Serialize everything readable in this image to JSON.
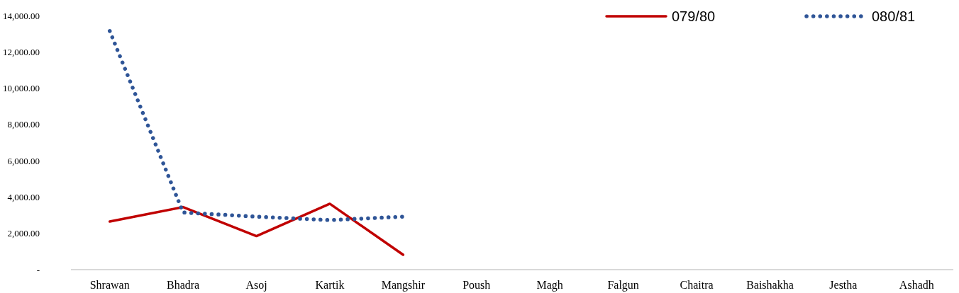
{
  "chart_data": {
    "type": "line",
    "categories": [
      "Shrawan",
      "Bhadra",
      "Asoj",
      "Kartik",
      "Mangshir",
      "Poush",
      "Magh",
      "Falgun",
      "Chaitra",
      "Baishakha",
      "Jestha",
      "Ashadh"
    ],
    "series": [
      {
        "name": "079/80",
        "color": "#c00000",
        "values": [
          2650,
          3450,
          1850,
          3630,
          820,
          null,
          null,
          null,
          null,
          null,
          null,
          null
        ],
        "line_style": "solid"
      },
      {
        "name": "080/81",
        "color": "#2f5597",
        "values": [
          13150,
          3150,
          2920,
          2730,
          2920,
          null,
          null,
          null,
          null,
          null,
          null,
          null
        ],
        "line_style": "dotted"
      }
    ],
    "ylim": [
      0,
      14000
    ],
    "yticks": [
      {
        "value": 0,
        "label": "-"
      },
      {
        "value": 2000,
        "label": "2,000.00"
      },
      {
        "value": 4000,
        "label": "4,000.00"
      },
      {
        "value": 6000,
        "label": "6,000.00"
      },
      {
        "value": 8000,
        "label": "8,000.00"
      },
      {
        "value": 10000,
        "label": "10,000.00"
      },
      {
        "value": 12000,
        "label": "12,000.00"
      },
      {
        "value": 14000,
        "label": "14,000.00"
      }
    ],
    "grid": false,
    "legend": "top right"
  }
}
